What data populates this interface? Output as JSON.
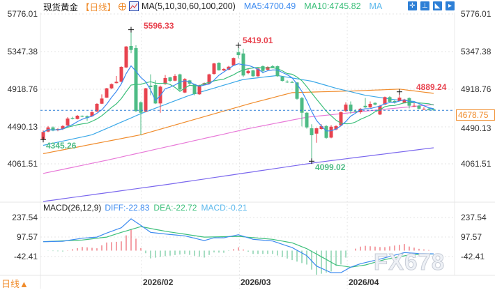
{
  "header": {
    "instrument": "现货黄金",
    "period": "【日线】",
    "ma_params": "MA(5,10,30,60,100,200)",
    "ma5": "MA5:4700.49",
    "ma10": "MA10:4745.82",
    "ma30": "MA"
  },
  "toolbar": {
    "icons": [
      "crosshair-icon",
      "range-icon",
      "draw-icon",
      "forward-icon"
    ],
    "glyphs": [
      "✛",
      "⊥",
      "◣",
      "▸"
    ]
  },
  "current_price": "4678.75",
  "macd_header": {
    "title": "MACD(26,12,9)",
    "diff": "DIFF:-22.83",
    "dea": "DEA:-22.72",
    "macd": "MACD:-0.21"
  },
  "period_switch": "日线▲",
  "watermark": "FX678",
  "colors": {
    "up": "#e8434f",
    "down": "#4dbb85",
    "ma5": "#3d8bf0",
    "ma10": "#3cbf7a",
    "ma30": "#3aa8e8",
    "ma60": "#f08c2c",
    "ma100": "#e879d8",
    "ma200": "#7b68ee",
    "diff": "#3d8bf0",
    "dea": "#3cbf7a"
  },
  "chart_data": [
    {
      "type": "candlestick",
      "title": "现货黄金 日线",
      "y_ticks": [
        "5776.01",
        "5347.38",
        "4918.76",
        "4490.13",
        "4061.51"
      ],
      "ylim": [
        3640,
        5800
      ],
      "x_ticks": [
        {
          "label": "2026/02",
          "index": 20.1
        },
        {
          "label": "2026/03",
          "index": 40.2
        },
        {
          "label": "2026/04",
          "index": 62.3
        }
      ],
      "annotations": [
        {
          "label": "5596.33",
          "index": 18,
          "value": 5596.33,
          "kind": "high"
        },
        {
          "label": "5419.01",
          "index": 40,
          "value": 5419.01,
          "kind": "high"
        },
        {
          "label": "4889.24",
          "index": 73,
          "value": 4889.24,
          "kind": "high"
        },
        {
          "label": "4345.26",
          "index": 0,
          "value": 4345.26,
          "kind": "low"
        },
        {
          "label": "4099.02",
          "index": 55,
          "value": 4099.02,
          "kind": "low"
        }
      ],
      "ohlc": [
        [
          4350,
          4450,
          4345,
          4432
        ],
        [
          4437,
          4500,
          4430,
          4484
        ],
        [
          4484,
          4495,
          4440,
          4448
        ],
        [
          4453,
          4475,
          4440,
          4466
        ],
        [
          4466,
          4510,
          4455,
          4500
        ],
        [
          4506,
          4600,
          4500,
          4585
        ],
        [
          4591,
          4605,
          4575,
          4580
        ],
        [
          4580,
          4625,
          4575,
          4617
        ],
        [
          4617,
          4620,
          4600,
          4607
        ],
        [
          4612,
          4620,
          4560,
          4591
        ],
        [
          4612,
          4670,
          4605,
          4657
        ],
        [
          4665,
          4760,
          4660,
          4752
        ],
        [
          4754,
          4860,
          4750,
          4813
        ],
        [
          4823,
          4935,
          4820,
          4929
        ],
        [
          4929,
          4985,
          4920,
          4977
        ],
        [
          4988,
          5070,
          4985,
          5004
        ],
        [
          5004,
          5180,
          5000,
          5173
        ],
        [
          5167,
          5410,
          5160,
          5405
        ],
        [
          5411,
          5596.33,
          5330,
          5366
        ],
        [
          5387,
          5420,
          4660,
          4670
        ],
        [
          4770,
          4780,
          4400,
          4651
        ],
        [
          4665,
          4935,
          4660,
          4929
        ],
        [
          4960,
          5088,
          4850,
          4943
        ],
        [
          4966,
          5020,
          4750,
          4757
        ],
        [
          4757,
          4960,
          4651,
          4948
        ],
        [
          4977,
          5080,
          4970,
          5046
        ],
        [
          5054,
          5060,
          5000,
          5014
        ],
        [
          5016,
          5090,
          5010,
          5069
        ],
        [
          5088,
          5095,
          4900,
          4916
        ],
        [
          4881,
          5045,
          4875,
          5035
        ],
        [
          5019,
          5025,
          4970,
          4982
        ],
        [
          4977,
          4980,
          4850,
          4863
        ],
        [
          4861,
          4970,
          4855,
          4964
        ],
        [
          4969,
          4995,
          4965,
          4988
        ],
        [
          4982,
          5095,
          4975,
          5088
        ],
        [
          5093,
          5220,
          5085,
          5212
        ],
        [
          5220,
          5225,
          5130,
          5135
        ],
        [
          5133,
          5160,
          5125,
          5149
        ],
        [
          5141,
          5185,
          5135,
          5175
        ],
        [
          5189,
          5280,
          5185,
          5274
        ],
        [
          5339,
          5419.01,
          5270,
          5308
        ],
        [
          5326,
          5380,
          5060,
          5075
        ],
        [
          5101,
          5150,
          5090,
          5127
        ],
        [
          5133,
          5140,
          5060,
          5067
        ],
        [
          5067,
          5160,
          5060,
          5154
        ],
        [
          5181,
          5190,
          5100,
          5127
        ],
        [
          5141,
          5180,
          5130,
          5173
        ],
        [
          5181,
          5195,
          5160,
          5167
        ],
        [
          5181,
          5190,
          5060,
          5067
        ],
        [
          5062,
          5070,
          5005,
          5014
        ],
        [
          5004,
          5020,
          4990,
          5000
        ],
        [
          5000,
          5015,
          4990,
          4996
        ],
        [
          4996,
          5000,
          4800,
          4810
        ],
        [
          4818,
          4830,
          4495,
          4651
        ],
        [
          4651,
          4660,
          4470,
          4484
        ],
        [
          4474,
          4520,
          4099.02,
          4395
        ],
        [
          4413,
          4480,
          4310,
          4474
        ],
        [
          4466,
          4520,
          4460,
          4498
        ],
        [
          4500,
          4510,
          4355,
          4365
        ],
        [
          4368,
          4510,
          4360,
          4492
        ],
        [
          4461,
          4510,
          4450,
          4498
        ],
        [
          4506,
          4665,
          4500,
          4657
        ],
        [
          4670,
          4770,
          4660,
          4744
        ],
        [
          4744,
          4780,
          4640,
          4670
        ],
        [
          4670,
          4690,
          4650,
          4660
        ],
        [
          4657,
          4705,
          4640,
          4697
        ],
        [
          4730,
          4820,
          4705,
          4712
        ],
        [
          4712,
          4780,
          4705,
          4752
        ],
        [
          4763,
          4770,
          4735,
          4744
        ],
        [
          4631,
          4740,
          4625,
          4730
        ],
        [
          4744,
          4835,
          4740,
          4829
        ],
        [
          4829,
          4840,
          4770,
          4776
        ],
        [
          4784,
          4800,
          4755,
          4765
        ],
        [
          4784,
          4889.24,
          4780,
          4823
        ],
        [
          4765,
          4810,
          4760,
          4802
        ],
        [
          4818,
          4825,
          4700,
          4731
        ],
        [
          4723,
          4760,
          4715,
          4731
        ],
        [
          4731,
          4745,
          4690,
          4697
        ],
        [
          4694,
          4715,
          4680,
          4697
        ],
        [
          4697,
          4710,
          4678,
          4684
        ],
        [
          4690,
          4700,
          4675,
          4678.75
        ]
      ],
      "ma_long": {
        "MA30": [
          [
            0,
            4280
          ],
          [
            10,
            4400
          ],
          [
            20,
            4640
          ],
          [
            30,
            4850
          ],
          [
            41,
            5030
          ],
          [
            48,
            5075
          ],
          [
            55,
            5010
          ],
          [
            60,
            4930
          ],
          [
            66,
            4850
          ],
          [
            72,
            4800
          ],
          [
            76,
            4780
          ],
          [
            80,
            4682
          ]
        ],
        "MA60": [
          [
            0,
            4185
          ],
          [
            20,
            4400
          ],
          [
            42,
            4750
          ],
          [
            51,
            4880
          ],
          [
            64,
            4900
          ],
          [
            73,
            4920
          ],
          [
            80,
            4872
          ]
        ],
        "MA100": [
          [
            0,
            3960
          ],
          [
            13,
            4110
          ],
          [
            42,
            4470
          ],
          [
            54,
            4600
          ],
          [
            68,
            4680
          ],
          [
            80,
            4745
          ]
        ],
        "MA200": [
          [
            0,
            3641
          ],
          [
            25,
            3831
          ],
          [
            56,
            4085
          ],
          [
            80,
            4252
          ]
        ]
      }
    },
    {
      "type": "macd",
      "title": "MACD(26,12,9)",
      "y_ticks": [
        "237.54",
        "97.57",
        "-42.41"
      ],
      "diff": [
        [
          0,
          64
        ],
        [
          4,
          67
        ],
        [
          8,
          89
        ],
        [
          11,
          97
        ],
        [
          13,
          126
        ],
        [
          16,
          164
        ],
        [
          18,
          228
        ],
        [
          20,
          181
        ],
        [
          22,
          131
        ],
        [
          25,
          119
        ],
        [
          29,
          106
        ],
        [
          33,
          72
        ],
        [
          35,
          92
        ],
        [
          37,
          92
        ],
        [
          40,
          114
        ],
        [
          43,
          81
        ],
        [
          47,
          69
        ],
        [
          51,
          22
        ],
        [
          54,
          -36
        ],
        [
          56,
          -111
        ],
        [
          59,
          -158
        ],
        [
          61,
          -158
        ],
        [
          63,
          -119
        ],
        [
          65,
          -94
        ],
        [
          69,
          -61
        ],
        [
          74,
          -14
        ],
        [
          77,
          -21
        ],
        [
          80,
          -22.83
        ]
      ],
      "dea": [
        [
          0,
          64
        ],
        [
          8,
          76
        ],
        [
          13,
          97
        ],
        [
          16,
          131
        ],
        [
          20,
          172
        ],
        [
          25,
          139
        ],
        [
          33,
          97
        ],
        [
          40,
          102
        ],
        [
          47,
          81
        ],
        [
          51,
          56
        ],
        [
          54,
          14
        ],
        [
          57,
          -44
        ],
        [
          60,
          -103
        ],
        [
          63,
          -119
        ],
        [
          66,
          -103
        ],
        [
          70,
          -64
        ],
        [
          75,
          -31
        ],
        [
          80,
          -22.72
        ]
      ]
    }
  ]
}
